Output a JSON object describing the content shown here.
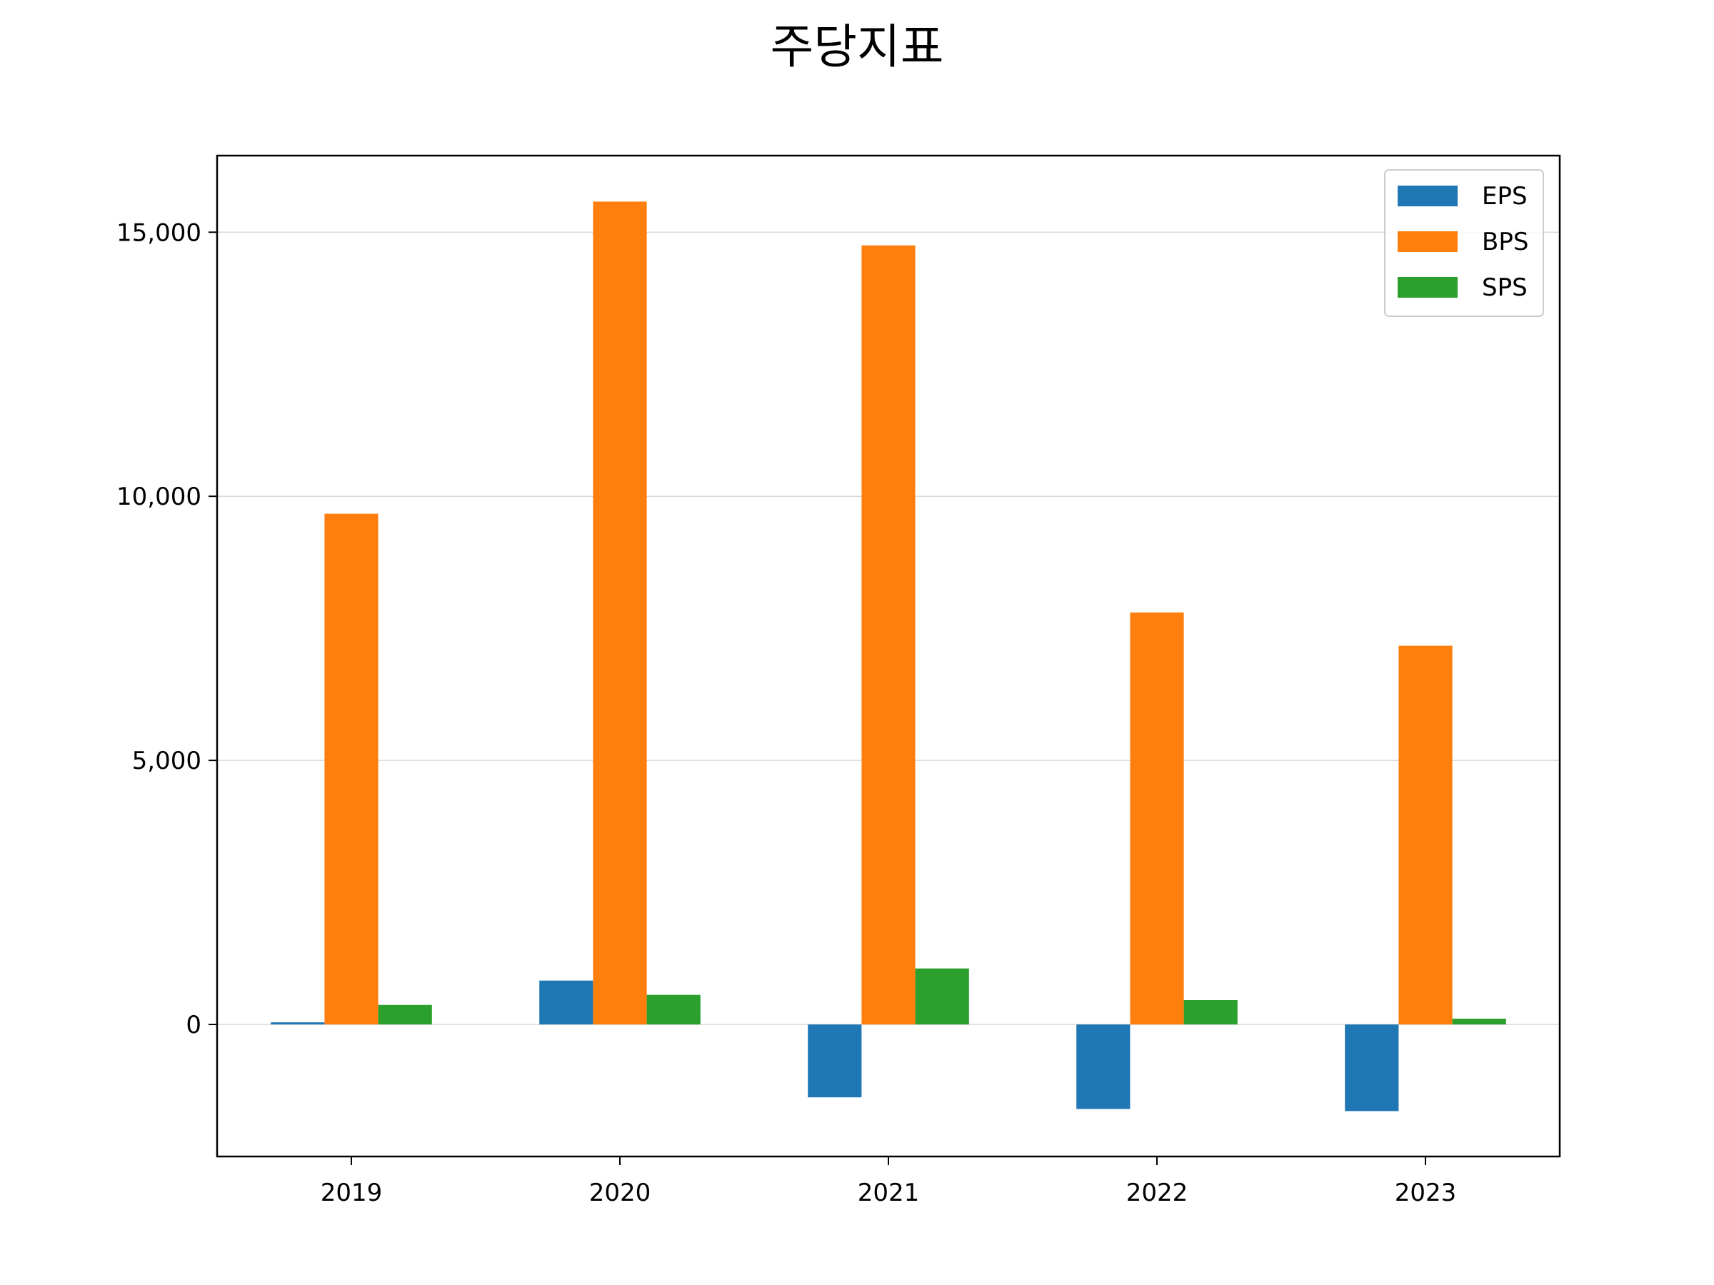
{
  "chart_data": {
    "type": "bar",
    "title": "주당지표",
    "xlabel": "",
    "ylabel": "",
    "categories": [
      "2019",
      "2020",
      "2021",
      "2022",
      "2023"
    ],
    "series": [
      {
        "name": "EPS",
        "color": "#1f77b4",
        "values": [
          40,
          830,
          -1380,
          -1600,
          -1640
        ]
      },
      {
        "name": "BPS",
        "color": "#ff7f0e",
        "values": [
          9670,
          15580,
          14750,
          7800,
          7170
        ]
      },
      {
        "name": "SPS",
        "color": "#2ca02c",
        "values": [
          370,
          560,
          1060,
          460,
          110
        ]
      }
    ],
    "ylim": [
      -2500,
      16450
    ],
    "yticks": [
      0,
      5000,
      10000,
      15000
    ],
    "ytick_labels": [
      "0",
      "5,000",
      "10,000",
      "15,000"
    ],
    "grid": "horizontal",
    "legend_position": "top-right"
  }
}
